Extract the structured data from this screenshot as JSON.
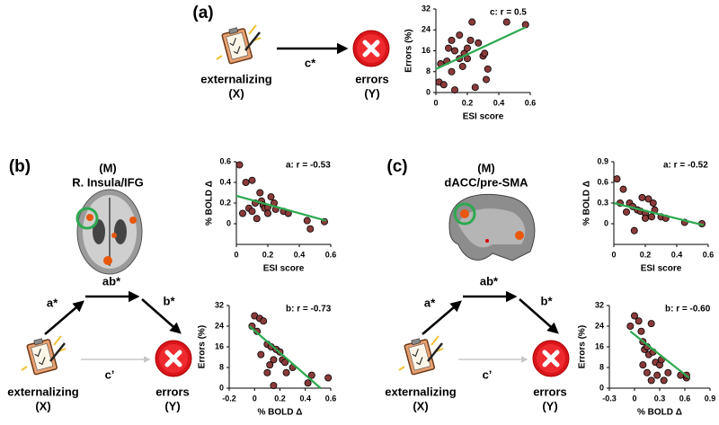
{
  "diagram": {
    "panel_labels": [
      "(a)",
      "(b)",
      "(c)"
    ],
    "a": {
      "x_label": "externalizing",
      "x_sub": "(X)",
      "y_label": "errors",
      "y_sub": "(Y)",
      "path_c": "c*"
    },
    "b": {
      "x_label": "externalizing",
      "x_sub": "(X)",
      "y_label": "errors",
      "y_sub": "(Y)",
      "m_label": "(M)",
      "m_region": "R. Insula/IFG",
      "path_a": "a*",
      "path_ab": "ab*",
      "path_b": "b*",
      "path_c": "c’"
    },
    "c": {
      "x_label": "externalizing",
      "x_sub": "(X)",
      "y_label": "errors",
      "y_sub": "(Y)",
      "m_label": "(M)",
      "m_region": "dACC/pre-SMA",
      "path_a": "a*",
      "path_ab": "ab*",
      "path_b": "b*",
      "path_c": "c’"
    }
  },
  "chart_data": [
    {
      "type": "scatter",
      "annotation": "c: r = 0.5",
      "x_label": "ESI score",
      "y_label": "Errors (%)",
      "x": [
        0.02,
        0.03,
        0.05,
        0.07,
        0.08,
        0.1,
        0.1,
        0.12,
        0.15,
        0.15,
        0.17,
        0.18,
        0.2,
        0.2,
        0.22,
        0.23,
        0.25,
        0.27,
        0.3,
        0.31,
        0.32,
        0.33,
        0.45,
        0.57,
        0.12
      ],
      "values": [
        4,
        11,
        3,
        12,
        17,
        20,
        8,
        16,
        22,
        13,
        10,
        15,
        13,
        17,
        20,
        27,
        2,
        19,
        14,
        15,
        5,
        9,
        27,
        26,
        1
      ],
      "color": "#8b3a3a",
      "fit": {
        "x": [
          0,
          0.57
        ],
        "values": [
          9,
          25
        ],
        "color": "#2ca94f"
      },
      "xlim": [
        0,
        0.6
      ],
      "xticks": [
        0,
        0.2,
        0.4,
        0.6
      ],
      "ylim": [
        0,
        32
      ],
      "yticks": [
        0,
        8,
        16,
        24,
        32
      ]
    },
    {
      "type": "scatter",
      "annotation": "a: r = -0.53",
      "x_label": "ESI score",
      "y_label": "% BOLD Δ",
      "x": [
        0.02,
        0.04,
        0.06,
        0.08,
        0.1,
        0.12,
        0.13,
        0.15,
        0.16,
        0.17,
        0.18,
        0.2,
        0.2,
        0.22,
        0.24,
        0.25,
        0.3,
        0.33,
        0.45,
        0.47,
        0.56,
        0.1
      ],
      "values": [
        0.57,
        0.1,
        0.4,
        0.15,
        0.42,
        0.2,
        0.05,
        0.3,
        0.22,
        0.18,
        0.15,
        0.16,
        0.1,
        0.26,
        0.2,
        0.14,
        0.12,
        0.1,
        0.03,
        -0.05,
        0.02,
        0.12
      ],
      "color": "#8b3a3a",
      "fit": {
        "x": [
          0,
          0.57
        ],
        "values": [
          0.27,
          0.03
        ],
        "color": "#2ca94f"
      },
      "xlim": [
        0,
        0.6
      ],
      "xticks": [
        0,
        0.2,
        0.4,
        0.6
      ],
      "ylim": [
        -0.2,
        0.6
      ],
      "yticks": [
        0,
        0.2,
        0.4,
        0.6
      ]
    },
    {
      "type": "scatter",
      "annotation": "b: r = -0.73",
      "x_label": "% BOLD Δ",
      "y_label": "Errors (%)",
      "x": [
        -0.02,
        0,
        0.02,
        0.04,
        0.07,
        0.1,
        0.05,
        0.1,
        0.12,
        0.13,
        0.15,
        0.17,
        0.2,
        0.22,
        0.24,
        0.25,
        0.3,
        0.42,
        0.45,
        0.58,
        0.15
      ],
      "values": [
        24,
        28,
        22,
        27,
        26,
        17,
        13,
        6,
        9,
        16,
        11,
        15,
        14,
        11,
        10,
        6,
        8,
        2,
        5,
        4,
        1
      ],
      "color": "#8b3a3a",
      "fit": {
        "x": [
          -0.04,
          0.52
        ],
        "values": [
          24,
          0
        ],
        "color": "#2ca94f"
      },
      "xlim": [
        -0.2,
        0.6
      ],
      "xticks": [
        -0.2,
        0,
        0.2,
        0.4,
        0.6
      ],
      "ylim": [
        0,
        32
      ],
      "yticks": [
        0,
        8,
        16,
        24,
        32
      ]
    },
    {
      "type": "scatter",
      "annotation": "a: r = -0.52",
      "x_label": "ESI score",
      "y_label": "% BOLD Δ",
      "x": [
        0.02,
        0.04,
        0.06,
        0.08,
        0.1,
        0.12,
        0.13,
        0.15,
        0.17,
        0.18,
        0.2,
        0.2,
        0.22,
        0.24,
        0.25,
        0.26,
        0.3,
        0.33,
        0.45,
        0.56
      ],
      "values": [
        0.65,
        0.3,
        0.5,
        0.17,
        0.3,
        0.25,
        -0.1,
        0.2,
        0.18,
        0.38,
        0.15,
        0.08,
        0.36,
        0.1,
        0.3,
        0.2,
        0.1,
        0.08,
        0.02,
        0
      ],
      "color": "#8b3a3a",
      "fit": {
        "x": [
          0,
          0.57
        ],
        "values": [
          0.3,
          -0.02
        ],
        "color": "#2ca94f"
      },
      "xlim": [
        0,
        0.6
      ],
      "xticks": [
        0,
        0.2,
        0.4,
        0.6
      ],
      "ylim": [
        -0.3,
        0.9
      ],
      "yticks": [
        0,
        0.3,
        0.6,
        0.9
      ]
    },
    {
      "type": "scatter",
      "annotation": "b: r = -0.60",
      "x_label": "% BOLD Δ",
      "y_label": "Errors (%)",
      "x": [
        -0.05,
        0,
        0.05,
        0.08,
        0.1,
        0.12,
        0.15,
        0.17,
        0.2,
        0.22,
        0.25,
        0.27,
        0.3,
        0.32,
        0.35,
        0.4,
        0.1,
        0.15,
        0.55,
        0.62,
        0.62,
        0.2
      ],
      "values": [
        24,
        28,
        26,
        22,
        18,
        15,
        16,
        13,
        25,
        14,
        10,
        5,
        9,
        11,
        3,
        6,
        9,
        6,
        5,
        4,
        5,
        3
      ],
      "color": "#8b3a3a",
      "fit": {
        "x": [
          -0.05,
          0.65
        ],
        "values": [
          22,
          4
        ],
        "color": "#2ca94f"
      },
      "xlim": [
        -0.3,
        0.9
      ],
      "xticks": [
        -0.3,
        0,
        0.3,
        0.6,
        0.9
      ],
      "ylim": [
        0,
        32
      ],
      "yticks": [
        0,
        8,
        16,
        24,
        32
      ]
    }
  ]
}
